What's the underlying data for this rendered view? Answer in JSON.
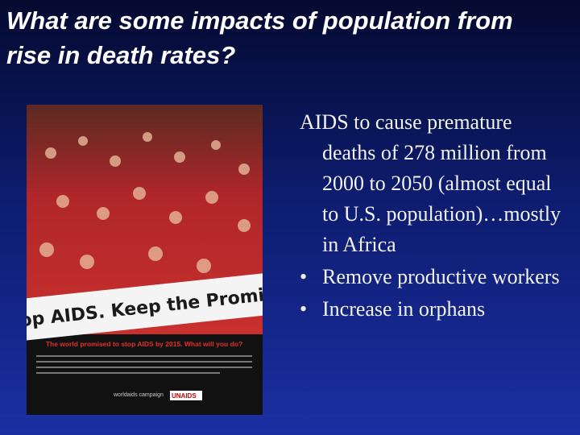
{
  "header": {
    "title": "What are some impacts of population from rise in death rates?"
  },
  "poster": {
    "banner": "Stop AIDS. Keep the Promise.",
    "tagline": "The world promised to stop AIDS by 2015. What will you do?",
    "logo_left": "worldaids campaign",
    "logo_right": "UNAIDS"
  },
  "body": {
    "items": [
      {
        "bullet": false,
        "text": "AIDS to cause premature deaths of 278 million from 2000 to 2050 (almost equal to U.S. population)…mostly in Africa"
      },
      {
        "bullet": true,
        "text": "Remove productive workers"
      },
      {
        "bullet": true,
        "text": "Increase in orphans"
      }
    ]
  }
}
